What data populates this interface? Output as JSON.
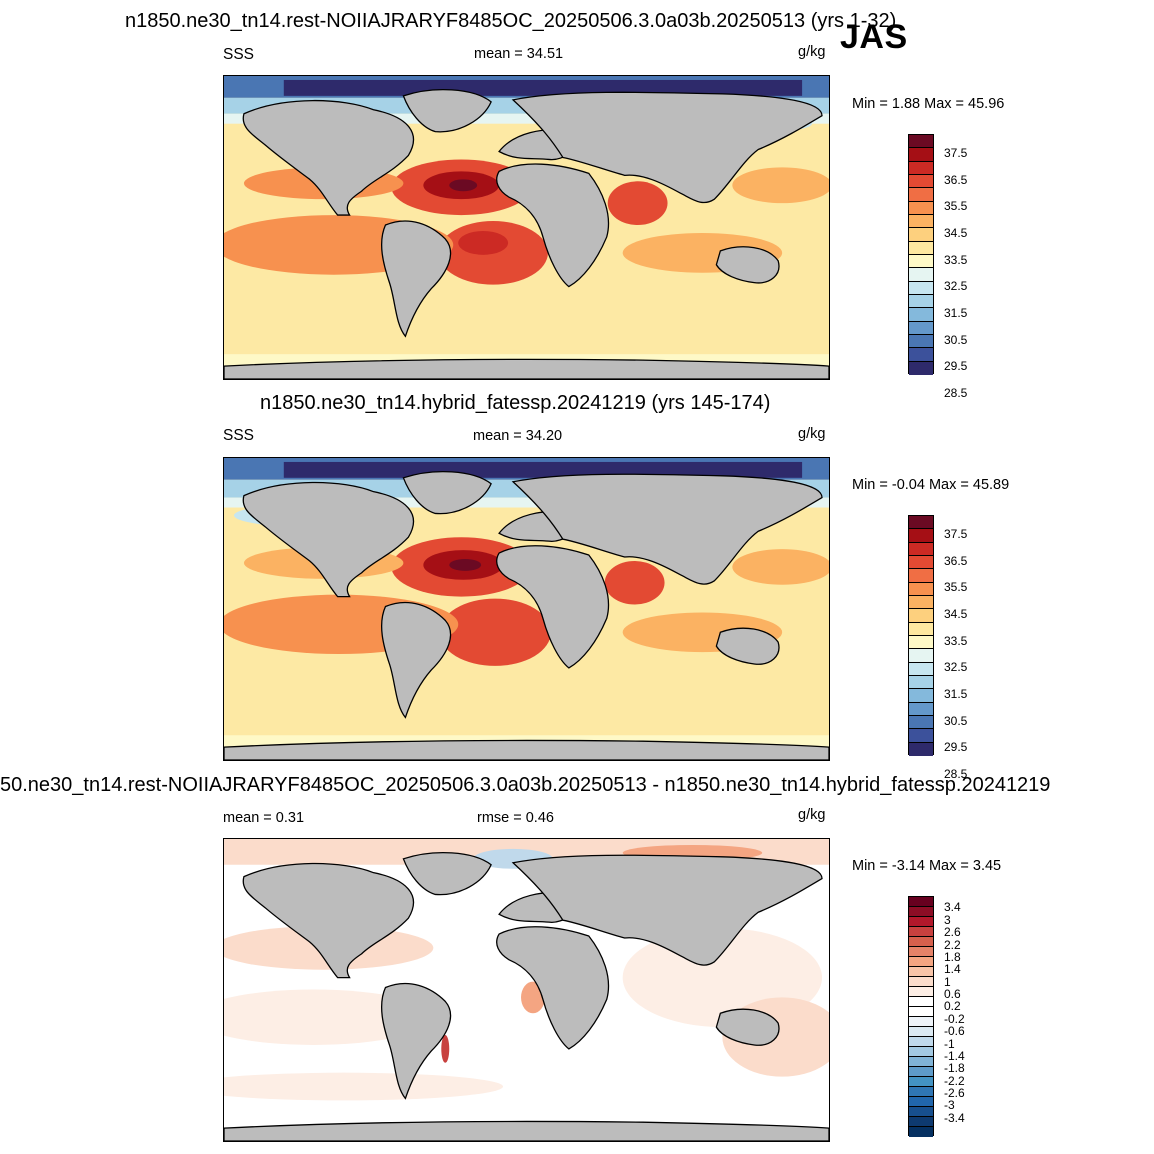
{
  "season": "JAS",
  "panels": [
    {
      "title": "n1850.ne30_tn14.rest-NOIIAJRARYF8485OC_20250506.3.0a03b.20250513 (yrs 1-32)",
      "left_label": "SSS",
      "center_label": "mean =  34.51",
      "units": "g/kg",
      "minmax": "Min =   1.88 Max =  45.96",
      "colorbar": {
        "colors": [
          "#6b0a23",
          "#a50f15",
          "#cc2a24",
          "#e34a33",
          "#f06e44",
          "#f7914f",
          "#fbb262",
          "#fdd07e",
          "#fee8a0",
          "#fef9c7",
          "#e6f5f2",
          "#c7e6f0",
          "#a6d2e7",
          "#84b9dc",
          "#6498ca",
          "#4a76b3",
          "#3c519b",
          "#2e2a6b"
        ],
        "labels": [
          "37.5",
          "36.5",
          "35.5",
          "34.5",
          "33.5",
          "32.5",
          "31.5",
          "30.5",
          "29.5",
          "28.5"
        ]
      }
    },
    {
      "title": "n1850.ne30_tn14.hybrid_fatessp.20241219 (yrs 145-174)",
      "left_label": "SSS",
      "center_label": "mean =  34.20",
      "units": "g/kg",
      "minmax": "Min =  -0.04 Max =  45.89",
      "colorbar": {
        "colors": [
          "#6b0a23",
          "#a50f15",
          "#cc2a24",
          "#e34a33",
          "#f06e44",
          "#f7914f",
          "#fbb262",
          "#fdd07e",
          "#fee8a0",
          "#fef9c7",
          "#e6f5f2",
          "#c7e6f0",
          "#a6d2e7",
          "#84b9dc",
          "#6498ca",
          "#4a76b3",
          "#3c519b",
          "#2e2a6b"
        ],
        "labels": [
          "37.5",
          "36.5",
          "35.5",
          "34.5",
          "33.5",
          "32.5",
          "31.5",
          "30.5",
          "29.5",
          "28.5"
        ]
      }
    },
    {
      "title": "50.ne30_tn14.rest-NOIIAJRARYF8485OC_20250506.3.0a03b.20250513 - n1850.ne30_tn14.hybrid_fatessp.20241219",
      "left_label": "mean =   0.31",
      "center_label": "rmse =   0.46",
      "units": "g/kg",
      "minmax": "Min =  -3.14 Max =   3.45",
      "colorbar": {
        "colors": [
          "#67001f",
          "#8c0d25",
          "#b2182b",
          "#c8413f",
          "#d6604d",
          "#e58268",
          "#f4a582",
          "#f8c4a8",
          "#fbdccb",
          "#fdeee5",
          "#ffffff",
          "#ffffff",
          "#eef3f8",
          "#dbe9f2",
          "#c0d9eb",
          "#a3c9e2",
          "#80b3d6",
          "#5e9bc9",
          "#4393c3",
          "#2f76b4",
          "#2166ac",
          "#174f8e",
          "#0e3a70",
          "#053061"
        ],
        "labels": [
          "3.4",
          "3",
          "2.6",
          "2.2",
          "1.8",
          "1.4",
          "1",
          "0.6",
          "0.2",
          "-0.2",
          "-0.6",
          "-1",
          "-1.4",
          "-1.8",
          "-2.2",
          "-2.6",
          "-3",
          "-3.4"
        ]
      }
    }
  ]
}
